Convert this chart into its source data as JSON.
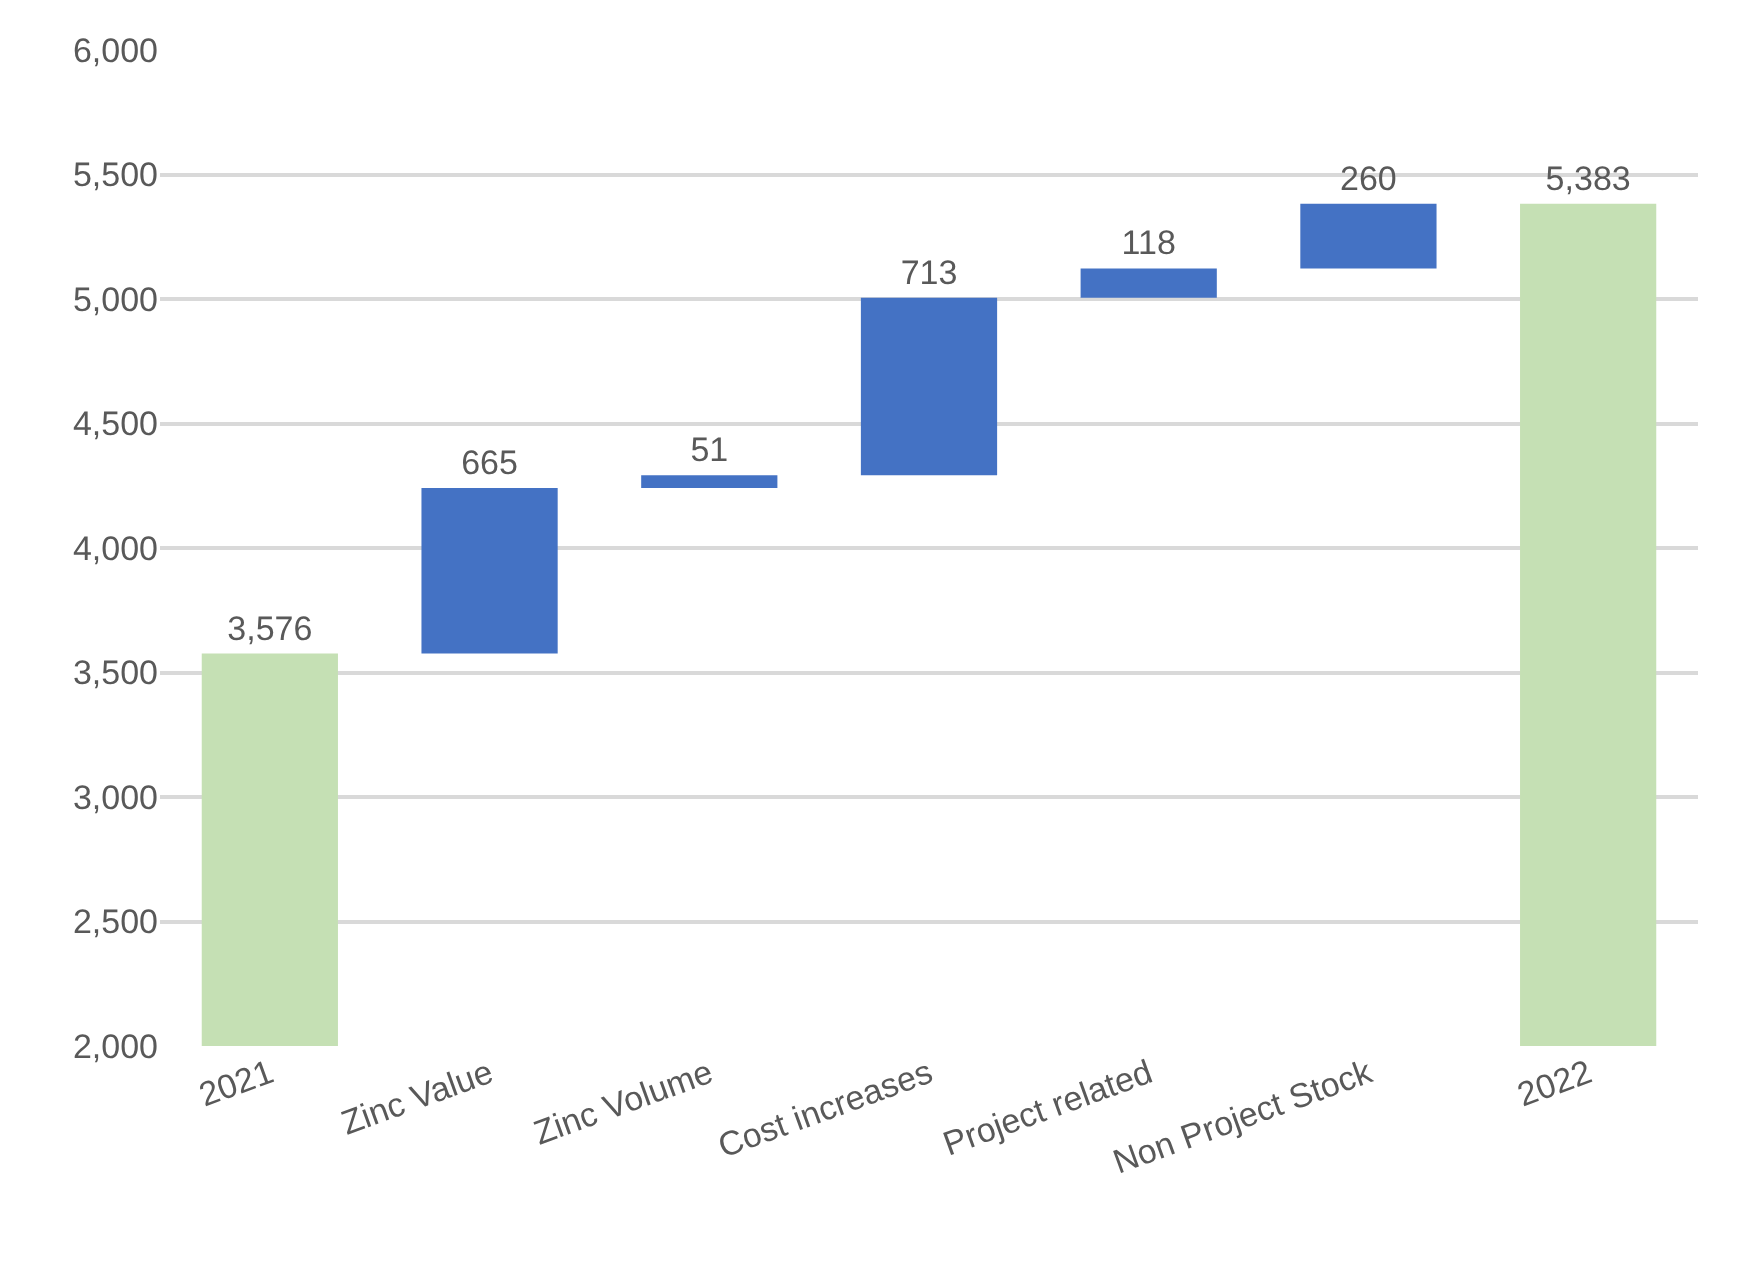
{
  "chart_data": {
    "type": "bar",
    "categories": [
      "2021",
      "Zinc Value",
      "Zinc Volume",
      "Cost increases",
      "Project related",
      "Non Project Stock",
      "2022"
    ],
    "values": [
      3576,
      665,
      51,
      713,
      118,
      260,
      5383
    ],
    "base": [
      null,
      3576,
      4241,
      4292,
      5005,
      5123,
      null
    ],
    "colors": [
      "#c5e0b4",
      "#4472c4",
      "#4472c4",
      "#4472c4",
      "#4472c4",
      "#4472c4",
      "#c5e0b4"
    ],
    "value_labels": [
      "3,576",
      "665",
      "51",
      "713",
      "118",
      "260",
      "5,383"
    ],
    "ylim": [
      2000,
      6000
    ],
    "yticks": [
      {
        "value": 2000,
        "label": "2,000"
      },
      {
        "value": 2500,
        "label": "2,500"
      },
      {
        "value": 3000,
        "label": "3,000"
      },
      {
        "value": 3500,
        "label": "3,500"
      },
      {
        "value": 4000,
        "label": "4,000"
      },
      {
        "value": 4500,
        "label": "4,500"
      },
      {
        "value": 5000,
        "label": "5,000"
      },
      {
        "value": 5500,
        "label": "5,500"
      },
      {
        "value": 6000,
        "label": "6,000"
      }
    ],
    "grid": "y",
    "legend": false
  }
}
